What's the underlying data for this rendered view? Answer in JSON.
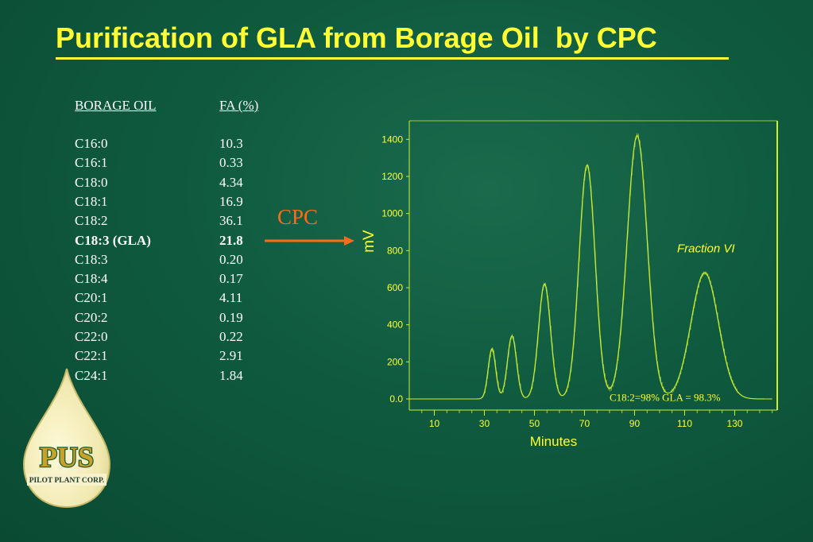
{
  "title": "Purification of GLA from Borage Oil  by CPC",
  "table": {
    "headers": [
      "BORAGE OIL",
      "FA (%)"
    ],
    "rows": [
      {
        "name": "C16:0",
        "value": "10.3"
      },
      {
        "name": "C16:1",
        "value": "0.33"
      },
      {
        "name": "C18:0",
        "value": "4.34"
      },
      {
        "name": "C18:1",
        "value": "16.9"
      },
      {
        "name": "C18:2",
        "value": "36.1"
      },
      {
        "name": "C18:3 (GLA)",
        "value": "21.8",
        "highlight": true
      },
      {
        "name": "C18:3",
        "value": "0.20"
      },
      {
        "name": "C18:4",
        "value": "0.17"
      },
      {
        "name": "C20:1",
        "value": "4.11"
      },
      {
        "name": "C20:2",
        "value": "0.19"
      },
      {
        "name": "C22:0",
        "value": "0.22"
      },
      {
        "name": "C22:1",
        "value": "2.91"
      },
      {
        "name": "C24:1",
        "value": "1.84"
      }
    ]
  },
  "cpc_label": "CPC",
  "logo": {
    "letters": "PUS",
    "caption": "PILOT PLANT CORP."
  },
  "colors": {
    "title": "#ffff33",
    "arrow": "#ff6a1a",
    "trace": "#ccee33",
    "axis": "#ccee33",
    "labels": "#ffff33"
  },
  "chart_data": {
    "type": "line",
    "xlabel": "Minutes",
    "ylabel": "mV",
    "xlim": [
      0,
      147
    ],
    "ylim": [
      -60,
      1500
    ],
    "xticks": [
      10,
      30,
      50,
      70,
      90,
      110,
      130
    ],
    "xtick_labels": [
      "10",
      "30",
      "50",
      "70",
      "90",
      "110",
      "130"
    ],
    "yticks": [
      0,
      200,
      400,
      600,
      800,
      1000,
      1200,
      1400
    ],
    "ytick_labels": [
      "0.0",
      "200",
      "400",
      "600",
      "800",
      "1000",
      "1200",
      "1400"
    ],
    "baseline": 0,
    "peaks": [
      {
        "x": 33,
        "height": 270,
        "width": 1.5
      },
      {
        "x": 41,
        "height": 340,
        "width": 1.8
      },
      {
        "x": 54,
        "height": 620,
        "width": 2.4
      },
      {
        "x": 71,
        "height": 1260,
        "width": 3.2
      },
      {
        "x": 91,
        "height": 1420,
        "width": 4.0
      },
      {
        "x": 118,
        "height": 680,
        "width": 5.5
      }
    ],
    "annotations": [
      {
        "text": "Fraction VI",
        "x": 107,
        "y": 790,
        "style": "italic"
      },
      {
        "text": "C18:2=98%  GLA = 98.3%",
        "x": 80,
        "y": -10
      }
    ]
  }
}
